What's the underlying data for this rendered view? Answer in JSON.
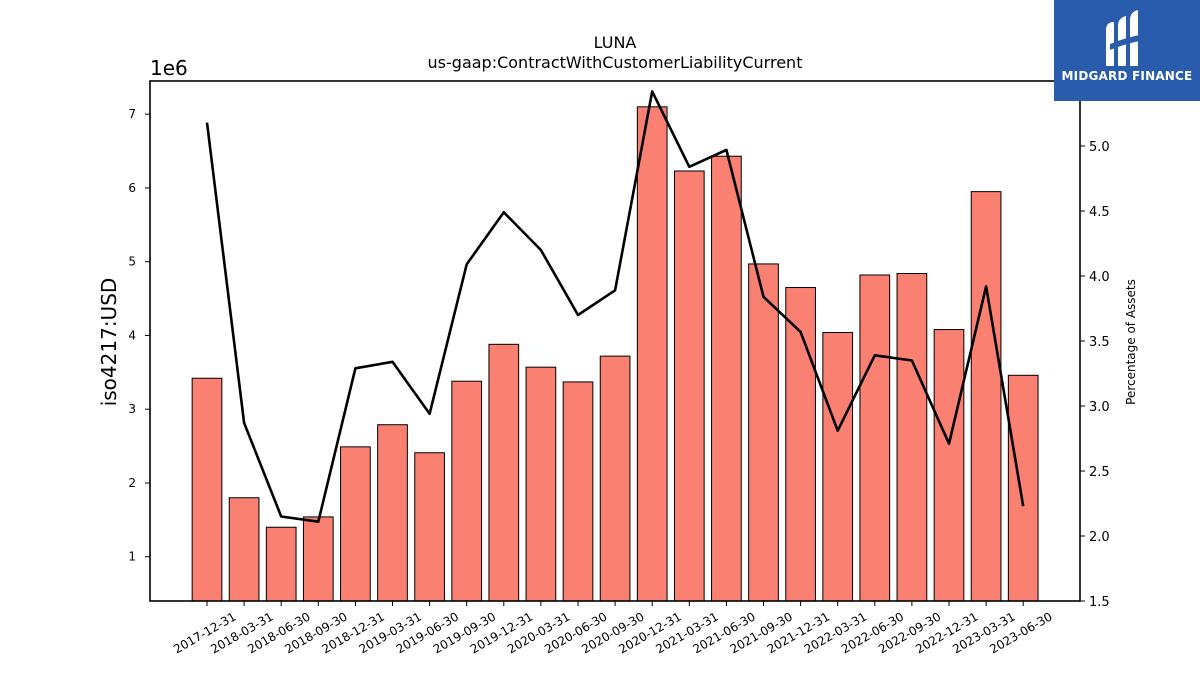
{
  "chart_data": {
    "type": "bar",
    "title": "LUNA",
    "subtitle": "us-gaap:ContractWithCustomerLiabilityCurrent",
    "ylabel": "iso4217:USD",
    "y_offset_label": "1e6",
    "y2label": "Percentage of Assets",
    "ylim": [
      400000.0,
      7450000.0
    ],
    "y2lim": [
      1.5,
      5.5
    ],
    "yticks": [
      1,
      2,
      3,
      4,
      5,
      6,
      7
    ],
    "y2ticks": [
      "1.5",
      "2.0",
      "2.5",
      "3.0",
      "3.5",
      "4.0",
      "4.5",
      "5.0"
    ],
    "categories": [
      "2017-12-31",
      "2018-03-31",
      "2018-06-30",
      "2018-09-30",
      "2018-12-31",
      "2019-03-31",
      "2019-06-30",
      "2019-09-30",
      "2019-12-31",
      "2020-03-31",
      "2020-06-30",
      "2020-09-30",
      "2020-12-31",
      "2021-03-31",
      "2021-06-30",
      "2021-09-30",
      "2021-12-31",
      "2022-03-31",
      "2022-06-30",
      "2022-09-30",
      "2022-12-31",
      "2023-03-31",
      "2023-06-30"
    ],
    "series": [
      {
        "type": "bar",
        "color": "#fa8072",
        "values": [
          3420000,
          1800000,
          1400000,
          1540000,
          2490000,
          2790000,
          2410000,
          3380000,
          3880000,
          3570000,
          3370000,
          3720000,
          7100000,
          6230000,
          6430000,
          4970000,
          4650000,
          4040000,
          4820000,
          4840000,
          4080000,
          5950000,
          3460000
        ]
      },
      {
        "type": "line",
        "color": "#000000",
        "axis": "right",
        "values": [
          5.18,
          2.87,
          2.15,
          2.11,
          3.29,
          3.34,
          2.94,
          4.09,
          4.49,
          4.2,
          3.7,
          3.89,
          5.42,
          4.84,
          4.97,
          3.84,
          3.57,
          2.81,
          3.39,
          3.35,
          2.71,
          3.92,
          2.23
        ]
      }
    ]
  },
  "logo": {
    "text": "MIDGARD FINANCE",
    "color": "#2a5cad"
  }
}
